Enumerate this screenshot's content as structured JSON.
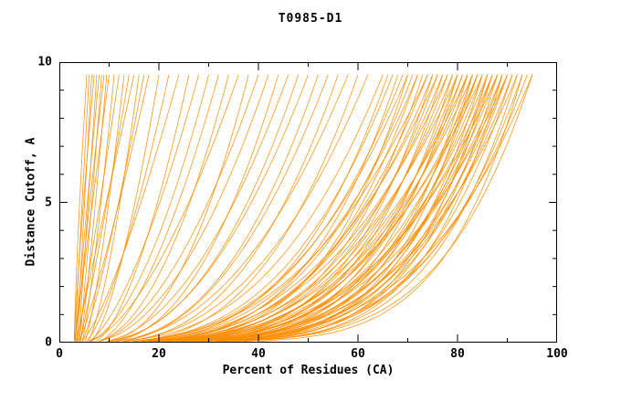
{
  "chart_data": {
    "type": "line",
    "title": "T0985-D1",
    "xlabel": "Percent of Residues (CA)",
    "ylabel": "Distance Cutoff, A",
    "xlim": [
      0,
      100
    ],
    "ylim": [
      0,
      10
    ],
    "x_ticks": [
      0,
      20,
      40,
      60,
      80,
      100
    ],
    "x_minor_ticks": [
      10,
      30,
      50,
      70,
      90
    ],
    "y_ticks": [
      0,
      5,
      10
    ],
    "y_minor_ticks": [
      1,
      2,
      3,
      4,
      6,
      7,
      8,
      9
    ],
    "line_color": "#FF8C00",
    "axis_color": "#000000",
    "background_color": "#FFFFFF",
    "legend": "none",
    "grid": false,
    "description": "Bundle of per-model cumulative curves: percent of CA residues (x) under a distance cutoff (y). Each curve parameterized as [start_x, end_x_at_top, power] with x(y) = start + (end - start) * (y/9.55)^power, y from 0.05 to 9.55.",
    "curve_y_range": [
      0.05,
      9.55
    ],
    "curves": [
      [
        3.0,
        5.5,
        1.3
      ],
      [
        3.2,
        6,
        1.1
      ],
      [
        3.5,
        6.5,
        1.0
      ],
      [
        3.0,
        7,
        1.2
      ],
      [
        3.8,
        7.5,
        0.95
      ],
      [
        3.2,
        8,
        1.05
      ],
      [
        4.0,
        8.5,
        0.9
      ],
      [
        3.5,
        9,
        1.15
      ],
      [
        4.2,
        9.5,
        0.85
      ],
      [
        3.0,
        10,
        1.0
      ],
      [
        4.5,
        11,
        0.8
      ],
      [
        3.6,
        12,
        0.95
      ],
      [
        5.0,
        13,
        0.75
      ],
      [
        4.0,
        14,
        0.9
      ],
      [
        3.3,
        15,
        1.0
      ],
      [
        5.5,
        16,
        0.7
      ],
      [
        4.4,
        17,
        0.8
      ],
      [
        3.8,
        18,
        0.85
      ],
      [
        6.0,
        20,
        0.65
      ],
      [
        5.0,
        22,
        0.7
      ],
      [
        4.2,
        24,
        0.75
      ],
      [
        6.5,
        26,
        0.6
      ],
      [
        5.2,
        28,
        0.65
      ],
      [
        4.6,
        30,
        0.55
      ],
      [
        7.0,
        32,
        0.6
      ],
      [
        5.8,
        34,
        0.5
      ],
      [
        4.9,
        36,
        0.6
      ],
      [
        7.5,
        38,
        0.45
      ],
      [
        6.2,
        40,
        0.55
      ],
      [
        5.4,
        42,
        0.5
      ],
      [
        8.0,
        44,
        0.45
      ],
      [
        6.6,
        46,
        0.5
      ],
      [
        5.0,
        48,
        0.42
      ],
      [
        7.2,
        50,
        0.48
      ],
      [
        6.0,
        52,
        0.4
      ],
      [
        8.5,
        54,
        0.45
      ],
      [
        6.8,
        56,
        0.38
      ],
      [
        5.6,
        58,
        0.42
      ],
      [
        7.6,
        60,
        0.36
      ],
      [
        6.4,
        62,
        0.4
      ],
      [
        3.0,
        65,
        0.35
      ],
      [
        4.0,
        66,
        0.3
      ],
      [
        3.5,
        67,
        0.33
      ],
      [
        4.5,
        68,
        0.28
      ],
      [
        3.2,
        69,
        0.32
      ],
      [
        5.0,
        70,
        0.26
      ],
      [
        3.8,
        70,
        0.34
      ],
      [
        4.2,
        71,
        0.3
      ],
      [
        3.0,
        72,
        0.27
      ],
      [
        4.8,
        72,
        0.33
      ],
      [
        3.4,
        73,
        0.25
      ],
      [
        4.0,
        74,
        0.3
      ],
      [
        3.6,
        74,
        0.35
      ],
      [
        5.0,
        75,
        0.24
      ],
      [
        3.1,
        75,
        0.3
      ],
      [
        4.4,
        76,
        0.27
      ],
      [
        3.7,
        76,
        0.33
      ],
      [
        4.1,
        77,
        0.23
      ],
      [
        3.3,
        77,
        0.29
      ],
      [
        4.7,
        78,
        0.26
      ],
      [
        3.5,
        78,
        0.32
      ],
      [
        4.3,
        79,
        0.22
      ],
      [
        3.0,
        79,
        0.28
      ],
      [
        5.2,
        80,
        0.25
      ],
      [
        3.8,
        80,
        0.31
      ],
      [
        4.5,
        80,
        0.21
      ],
      [
        3.2,
        81,
        0.27
      ],
      [
        4.9,
        81,
        0.24
      ],
      [
        3.6,
        82,
        0.3
      ],
      [
        4.2,
        82,
        0.2
      ],
      [
        3.4,
        82,
        0.26
      ],
      [
        5.0,
        83,
        0.23
      ],
      [
        3.9,
        83,
        0.29
      ],
      [
        4.6,
        83,
        0.19
      ],
      [
        3.1,
        84,
        0.25
      ],
      [
        4.3,
        84,
        0.22
      ],
      [
        3.7,
        84,
        0.28
      ],
      [
        5.1,
        85,
        0.2
      ],
      [
        3.5,
        85,
        0.24
      ],
      [
        4.0,
        85,
        0.3
      ],
      [
        4.8,
        86,
        0.21
      ],
      [
        3.3,
        86,
        0.26
      ],
      [
        4.4,
        86,
        0.18
      ],
      [
        3.8,
        87,
        0.23
      ],
      [
        5.0,
        87,
        0.27
      ],
      [
        4.1,
        87,
        0.2
      ],
      [
        3.6,
        88,
        0.24
      ],
      [
        4.6,
        88,
        0.19
      ],
      [
        3.2,
        88,
        0.28
      ],
      [
        4.9,
        89,
        0.22
      ],
      [
        3.9,
        89,
        0.25
      ],
      [
        4.3,
        89,
        0.18
      ],
      [
        3.5,
        90,
        0.21
      ],
      [
        4.7,
        90,
        0.24
      ],
      [
        3.0,
        90,
        0.27
      ],
      [
        4.2,
        91,
        0.2
      ],
      [
        3.7,
        91,
        0.23
      ],
      [
        5.0,
        92,
        0.19
      ],
      [
        3.4,
        92,
        0.25
      ],
      [
        4.5,
        93,
        0.21
      ],
      [
        3.8,
        93,
        0.17
      ],
      [
        4.1,
        94,
        0.22
      ],
      [
        3.6,
        95,
        0.19
      ],
      [
        4.4,
        95,
        0.24
      ]
    ]
  }
}
